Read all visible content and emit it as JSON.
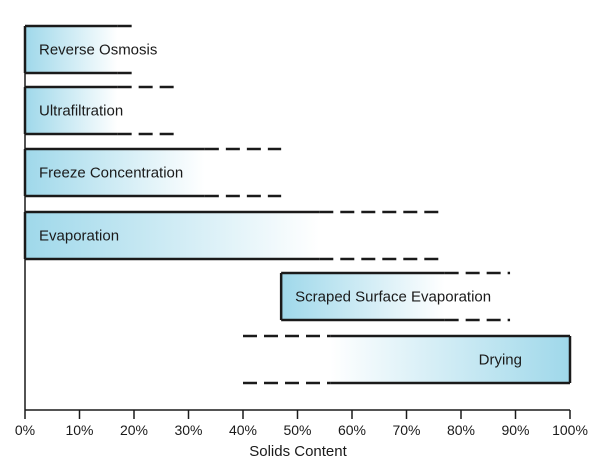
{
  "chart_data": {
    "type": "bar",
    "orientation": "horizontal",
    "title": "",
    "xlabel": "Solids Content",
    "ylabel": "",
    "xlim": [
      0,
      100
    ],
    "x_ticks": [
      0,
      10,
      20,
      30,
      40,
      50,
      60,
      70,
      80,
      90,
      100
    ],
    "x_tick_labels": [
      "0%",
      "10%",
      "20%",
      "30%",
      "40%",
      "50%",
      "60%",
      "70%",
      "80%",
      "90%",
      "100%"
    ],
    "grid": false,
    "legend": "none",
    "colors": {
      "fill_light": "#ffffff",
      "fill_dark": "#9fd8ea",
      "line": "#1a1a1a"
    },
    "bars": [
      {
        "name": "Reverse Osmosis",
        "start": 0,
        "end": 0,
        "solid_to": 17,
        "dashed_to": 20,
        "gradient": "left"
      },
      {
        "name": "Ultrafiltration",
        "start": 0,
        "end": 0,
        "solid_to": 17,
        "dashed_to": 28,
        "gradient": "left"
      },
      {
        "name": "Freeze Concentration",
        "start": 0,
        "end": 0,
        "solid_to": 33,
        "dashed_to": 47,
        "gradient": "left"
      },
      {
        "name": "Evaporation",
        "start": 0,
        "end": 0,
        "solid_to": 54,
        "dashed_to": 76,
        "gradient": "left"
      },
      {
        "name": "Scraped Surface Evaporation",
        "start": 47,
        "end": 47,
        "solid_to": 77,
        "dashed_to": 89,
        "gradient": "left"
      },
      {
        "name": "Drying",
        "start": 100,
        "end": 100,
        "solid_to": 56,
        "dashed_to": 40,
        "gradient": "right"
      }
    ]
  }
}
